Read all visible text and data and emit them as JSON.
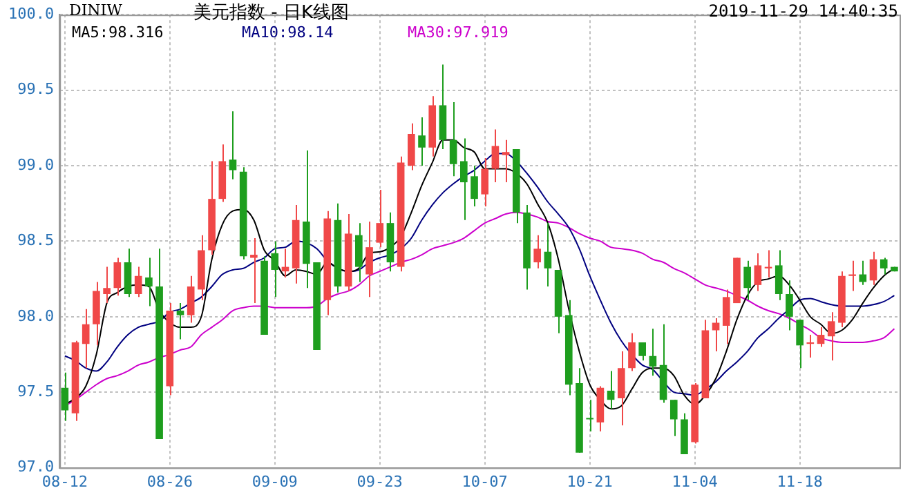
{
  "chart_data": {
    "type": "candlestick",
    "title": "美元指数 - 日K线图",
    "subtitle": "DINIW",
    "annotations": [
      "2019-11-29 14:40:35"
    ],
    "categories": [
      "08-12",
      null,
      null,
      null,
      null,
      null,
      null,
      null,
      null,
      null,
      "08-26",
      null,
      null,
      null,
      null,
      null,
      null,
      null,
      null,
      null,
      "09-09",
      null,
      null,
      null,
      null,
      null,
      null,
      null,
      null,
      null,
      "09-23",
      null,
      null,
      null,
      null,
      null,
      null,
      null,
      null,
      null,
      "10-07",
      null,
      null,
      null,
      null,
      null,
      null,
      null,
      null,
      null,
      "10-21",
      null,
      null,
      null,
      null,
      null,
      null,
      null,
      null,
      null,
      "11-04",
      null,
      null,
      null,
      null,
      null,
      null,
      null,
      null,
      null,
      "11-18",
      null,
      null,
      null,
      null,
      null,
      null,
      null,
      null,
      null
    ],
    "ohlc": [
      [
        97.53,
        97.63,
        97.31,
        97.38
      ],
      [
        97.36,
        97.84,
        97.31,
        97.83
      ],
      [
        97.82,
        98.05,
        97.66,
        97.95
      ],
      [
        97.95,
        98.23,
        97.81,
        98.17
      ],
      [
        98.15,
        98.33,
        98.09,
        98.19
      ],
      [
        98.19,
        98.39,
        98.14,
        98.36
      ],
      [
        98.36,
        98.45,
        98.13,
        98.15
      ],
      [
        98.15,
        98.33,
        98.13,
        98.27
      ],
      [
        98.26,
        98.39,
        98.07,
        98.2
      ],
      [
        98.2,
        98.45,
        97.19,
        97.19
      ],
      [
        97.54,
        98.09,
        97.48,
        98.04
      ],
      [
        98.04,
        98.09,
        97.85,
        98.01
      ],
      [
        98.01,
        98.27,
        97.96,
        98.2
      ],
      [
        98.18,
        98.54,
        98.11,
        98.44
      ],
      [
        98.44,
        99.03,
        98.41,
        98.78
      ],
      [
        98.78,
        99.14,
        98.76,
        99.03
      ],
      [
        99.04,
        99.36,
        98.91,
        98.97
      ],
      [
        98.96,
        98.99,
        98.38,
        98.4
      ],
      [
        98.39,
        98.52,
        98.09,
        98.41
      ],
      [
        98.37,
        98.4,
        97.88,
        97.88
      ],
      [
        98.42,
        98.5,
        98.13,
        98.31
      ],
      [
        98.3,
        98.45,
        98.26,
        98.33
      ],
      [
        98.32,
        98.74,
        98.22,
        98.64
      ],
      [
        98.63,
        99.1,
        98.19,
        98.35
      ],
      [
        98.36,
        98.36,
        97.78,
        97.78
      ],
      [
        98.11,
        98.7,
        98.01,
        98.65
      ],
      [
        98.64,
        98.75,
        98.16,
        98.2
      ],
      [
        98.2,
        98.68,
        98.17,
        98.55
      ],
      [
        98.54,
        98.62,
        98.23,
        98.33
      ],
      [
        98.28,
        98.63,
        98.13,
        98.46
      ],
      [
        98.49,
        98.84,
        98.46,
        98.62
      ],
      [
        98.62,
        98.69,
        98.3,
        98.36
      ],
      [
        98.33,
        99.06,
        98.3,
        99.02
      ],
      [
        99.0,
        99.28,
        98.97,
        99.21
      ],
      [
        99.2,
        99.32,
        99.0,
        99.12
      ],
      [
        99.12,
        99.46,
        99.06,
        99.4
      ],
      [
        99.4,
        99.67,
        99.11,
        99.17
      ],
      [
        99.17,
        99.42,
        98.93,
        99.01
      ],
      [
        99.03,
        99.18,
        98.64,
        98.89
      ],
      [
        98.93,
        99.0,
        98.73,
        98.78
      ],
      [
        98.81,
        99.05,
        98.73,
        98.98
      ],
      [
        98.98,
        99.24,
        98.89,
        99.13
      ],
      [
        99.07,
        99.17,
        98.89,
        99.09
      ],
      [
        99.11,
        99.11,
        98.62,
        98.69
      ],
      [
        98.69,
        98.74,
        98.18,
        98.32
      ],
      [
        98.36,
        98.54,
        98.32,
        98.45
      ],
      [
        98.43,
        98.62,
        98.2,
        98.32
      ],
      [
        98.31,
        98.31,
        97.89,
        98.0
      ],
      [
        98.01,
        98.11,
        97.48,
        97.55
      ],
      [
        97.56,
        97.66,
        97.1,
        97.1
      ],
      [
        97.33,
        97.45,
        97.24,
        97.32
      ],
      [
        97.3,
        97.54,
        97.24,
        97.53
      ],
      [
        97.51,
        97.64,
        97.39,
        97.45
      ],
      [
        97.46,
        97.77,
        97.28,
        97.66
      ],
      [
        97.66,
        97.89,
        97.64,
        97.83
      ],
      [
        97.83,
        97.83,
        97.71,
        97.74
      ],
      [
        97.74,
        97.92,
        97.61,
        97.67
      ],
      [
        97.68,
        97.95,
        97.43,
        97.45
      ],
      [
        97.45,
        97.45,
        97.21,
        97.32
      ],
      [
        97.32,
        97.36,
        97.09,
        97.09
      ],
      [
        97.17,
        97.56,
        97.16,
        97.55
      ],
      [
        97.46,
        97.98,
        97.46,
        97.91
      ],
      [
        97.91,
        97.99,
        97.77,
        97.96
      ],
      [
        97.94,
        98.18,
        97.82,
        98.13
      ],
      [
        98.09,
        98.39,
        98.09,
        98.39
      ],
      [
        98.33,
        98.37,
        98.11,
        98.19
      ],
      [
        98.21,
        98.42,
        98.17,
        98.34
      ],
      [
        98.32,
        98.44,
        98.26,
        98.33
      ],
      [
        98.34,
        98.44,
        98.11,
        98.15
      ],
      [
        98.15,
        98.24,
        97.91,
        98.0
      ],
      [
        97.98,
        97.98,
        97.66,
        97.81
      ],
      [
        97.82,
        97.88,
        97.73,
        97.83
      ],
      [
        97.82,
        97.93,
        97.8,
        97.88
      ],
      [
        97.87,
        98.03,
        97.71,
        97.97
      ],
      [
        97.96,
        98.3,
        97.93,
        98.27
      ],
      [
        98.27,
        98.37,
        98.17,
        98.28
      ],
      [
        98.28,
        98.37,
        98.21,
        98.23
      ],
      [
        98.24,
        98.43,
        98.21,
        98.38
      ],
      [
        98.38,
        98.39,
        98.28,
        98.32
      ],
      [
        98.33,
        98.33,
        98.3,
        98.3
      ]
    ],
    "colors": [
      "#1e9e1e",
      "#f04848",
      "#f04848",
      "#f04848",
      "#f04848",
      "#f04848",
      "#1e9e1e",
      "#f04848",
      "#1e9e1e",
      "#1e9e1e",
      "#f04848",
      "#1e9e1e",
      "#f04848",
      "#f04848",
      "#f04848",
      "#f04848",
      "#1e9e1e",
      "#1e9e1e",
      "#f04848",
      "#1e9e1e",
      "#1e9e1e",
      "#f04848",
      "#f04848",
      "#1e9e1e",
      "#1e9e1e",
      "#f04848",
      "#1e9e1e",
      "#f04848",
      "#1e9e1e",
      "#f04848",
      "#f04848",
      "#1e9e1e",
      "#f04848",
      "#f04848",
      "#1e9e1e",
      "#f04848",
      "#1e9e1e",
      "#1e9e1e",
      "#1e9e1e",
      "#1e9e1e",
      "#f04848",
      "#f04848",
      "#f04848",
      "#1e9e1e",
      "#1e9e1e",
      "#f04848",
      "#1e9e1e",
      "#1e9e1e",
      "#1e9e1e",
      "#1e9e1e",
      "#1e9e1e",
      "#f04848",
      "#1e9e1e",
      "#f04848",
      "#f04848",
      "#1e9e1e",
      "#1e9e1e",
      "#1e9e1e",
      "#1e9e1e",
      "#1e9e1e",
      "#f04848",
      "#f04848",
      "#f04848",
      "#f04848",
      "#f04848",
      "#1e9e1e",
      "#f04848",
      "#f04848",
      "#1e9e1e",
      "#1e9e1e",
      "#1e9e1e",
      "#f04848",
      "#f04848",
      "#f04848",
      "#f04848",
      "#f04848",
      "#1e9e1e",
      "#f04848",
      "#1e9e1e",
      "#1e9e1e"
    ],
    "series": [
      {
        "name": "MA5:98.316",
        "type": "line",
        "color": "#000000",
        "values": [
          97.42,
          97.46,
          97.54,
          97.75,
          98.09,
          98.16,
          98.2,
          98.21,
          98.2,
          98.04,
          97.96,
          97.93,
          97.93,
          98.0,
          98.38,
          98.61,
          98.7,
          98.71,
          98.64,
          98.44,
          98.37,
          98.27,
          98.31,
          98.3,
          98.28,
          98.36,
          98.32,
          98.3,
          98.32,
          98.42,
          98.43,
          98.46,
          98.53,
          98.69,
          98.87,
          99.02,
          99.17,
          99.17,
          99.12,
          99.09,
          98.98,
          98.98,
          98.98,
          98.95,
          98.88,
          98.75,
          98.62,
          98.38,
          98.05,
          97.77,
          97.55,
          97.45,
          97.39,
          97.41,
          97.52,
          97.63,
          97.66,
          97.66,
          97.61,
          97.48,
          97.42,
          97.48,
          97.59,
          97.77,
          97.98,
          98.14,
          98.23,
          98.25,
          98.27,
          98.21,
          98.11,
          98.0,
          97.95,
          97.89,
          97.91,
          97.98,
          98.09,
          98.19,
          98.27,
          98.32
        ]
      },
      {
        "name": "MA10:98.14",
        "type": "line",
        "color": "#000080",
        "values": [
          97.74,
          97.71,
          97.66,
          97.64,
          97.7,
          97.8,
          97.88,
          97.93,
          97.95,
          97.97,
          98.03,
          98.05,
          98.09,
          98.13,
          98.2,
          98.28,
          98.31,
          98.32,
          98.36,
          98.39,
          98.45,
          98.46,
          98.5,
          98.49,
          98.45,
          98.37,
          98.32,
          98.3,
          98.31,
          98.36,
          98.39,
          98.41,
          98.45,
          98.52,
          98.64,
          98.74,
          98.82,
          98.88,
          98.93,
          98.97,
          99.03,
          99.08,
          99.08,
          99.03,
          98.95,
          98.86,
          98.76,
          98.68,
          98.59,
          98.45,
          98.27,
          98.11,
          97.96,
          97.84,
          97.75,
          97.68,
          97.65,
          97.57,
          97.5,
          97.49,
          97.48,
          97.52,
          97.57,
          97.64,
          97.7,
          97.77,
          97.86,
          97.92,
          97.99,
          98.05,
          98.11,
          98.12,
          98.1,
          98.08,
          98.07,
          98.07,
          98.07,
          98.08,
          98.1,
          98.14
        ]
      },
      {
        "name": "MA30:97.919",
        "type": "line",
        "color": "#cc00cc",
        "values": [
          97.41,
          97.45,
          97.5,
          97.55,
          97.59,
          97.61,
          97.64,
          97.68,
          97.7,
          97.73,
          97.75,
          97.78,
          97.8,
          97.88,
          97.93,
          97.98,
          98.04,
          98.06,
          98.07,
          98.07,
          98.06,
          98.06,
          98.06,
          98.06,
          98.07,
          98.12,
          98.15,
          98.17,
          98.21,
          98.27,
          98.3,
          98.33,
          98.36,
          98.38,
          98.41,
          98.45,
          98.47,
          98.49,
          98.52,
          98.57,
          98.62,
          98.65,
          98.68,
          98.69,
          98.68,
          98.66,
          98.63,
          98.62,
          98.59,
          98.55,
          98.52,
          98.5,
          98.46,
          98.45,
          98.44,
          98.42,
          98.38,
          98.36,
          98.32,
          98.29,
          98.25,
          98.21,
          98.19,
          98.17,
          98.14,
          98.11,
          98.07,
          98.04,
          98.02,
          97.99,
          97.95,
          97.91,
          97.86,
          97.84,
          97.83,
          97.83,
          97.83,
          97.84,
          97.86,
          97.92
        ]
      }
    ],
    "ylim": [
      97,
      100
    ],
    "yticks": [
      {
        "value": 97,
        "label": "97.0"
      },
      {
        "value": 97.5,
        "label": "97.5"
      },
      {
        "value": 98,
        "label": "98.0"
      },
      {
        "value": 98.5,
        "label": "98.5"
      },
      {
        "value": 99,
        "label": "99.0"
      },
      {
        "value": 99.5,
        "label": "99.5"
      },
      {
        "value": 100,
        "label": "100.0"
      }
    ],
    "grid": true,
    "legend": "top left"
  }
}
